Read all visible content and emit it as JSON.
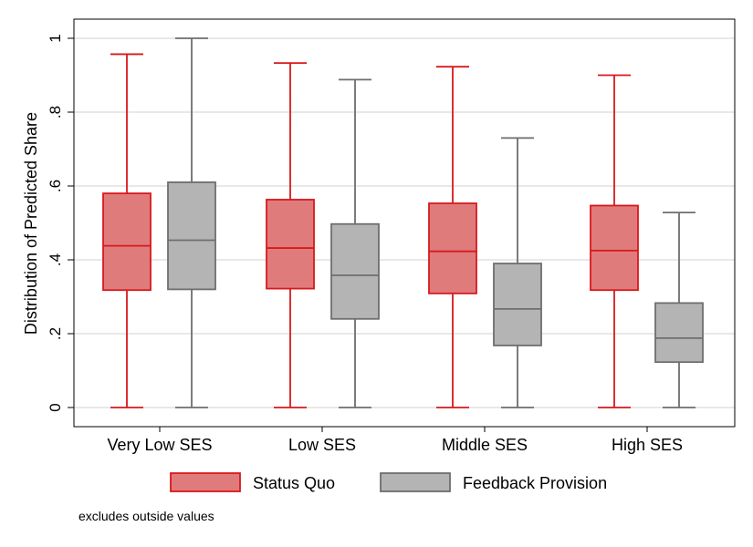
{
  "chart_data": {
    "type": "boxplot",
    "categories": [
      "Very Low SES",
      "Low SES",
      "Middle SES",
      "High SES"
    ],
    "ylabel": "Distribution of Predicted Share",
    "ylim": [
      0,
      1
    ],
    "yticks": [
      {
        "value": 0,
        "label": "0"
      },
      {
        "value": 0.2,
        "label": ".2"
      },
      {
        "value": 0.4,
        "label": ".4"
      },
      {
        "value": 0.6,
        "label": ".6"
      },
      {
        "value": 0.8,
        "label": ".8"
      },
      {
        "value": 1,
        "label": "1"
      }
    ],
    "grid": true,
    "legend_position": "bottom",
    "note": "excludes outside values",
    "series": [
      {
        "name": "Status Quo",
        "fill": "#e07b7b",
        "stroke": "#d7191c",
        "boxes": [
          {
            "min": 0,
            "q1": 0.318,
            "median": 0.438,
            "q3": 0.58,
            "max": 0.957
          },
          {
            "min": 0,
            "q1": 0.322,
            "median": 0.432,
            "q3": 0.563,
            "max": 0.933
          },
          {
            "min": 0,
            "q1": 0.309,
            "median": 0.423,
            "q3": 0.553,
            "max": 0.923
          },
          {
            "min": 0,
            "q1": 0.318,
            "median": 0.425,
            "q3": 0.547,
            "max": 0.9
          }
        ]
      },
      {
        "name": "Feedback Provision",
        "fill": "#b4b4b4",
        "stroke": "#6e6e6e",
        "boxes": [
          {
            "min": 0,
            "q1": 0.32,
            "median": 0.453,
            "q3": 0.61,
            "max": 1.0
          },
          {
            "min": 0,
            "q1": 0.24,
            "median": 0.358,
            "q3": 0.497,
            "max": 0.888
          },
          {
            "min": 0,
            "q1": 0.168,
            "median": 0.267,
            "q3": 0.39,
            "max": 0.73
          },
          {
            "min": 0,
            "q1": 0.123,
            "median": 0.188,
            "q3": 0.283,
            "max": 0.528
          }
        ]
      }
    ]
  }
}
